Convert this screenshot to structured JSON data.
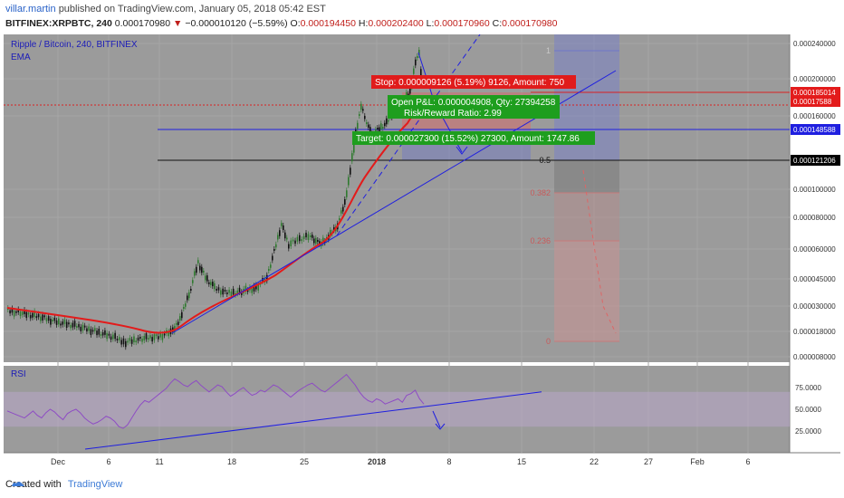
{
  "header": {
    "user": "villar.martin",
    "published": "published on TradingView.com, January 05, 2018 05:42 EST",
    "symbol": "BITFINEX:XRPBTC, 240",
    "last": "0.000170980",
    "change": "−0.000010120 (−5.59%)",
    "o_label": "O:",
    "o": "0.000194450",
    "h_label": "H:",
    "h": "0.000202400",
    "l_label": "L:",
    "l": "0.000170960",
    "c_label": "C:",
    "c": "0.000170980"
  },
  "footer": {
    "created_with": "Created with",
    "brand": "TradingView"
  },
  "colors": {
    "bg": "#9b9b9b",
    "grid": "#a6a6a6",
    "ema": "#e31b1b",
    "trend": "#1f1fe0",
    "up": "#2f7a2f",
    "down": "#111111",
    "rsi": "#8e4cc4",
    "rsi_band": "#b8a6c9",
    "stop_box": "#e01b1b",
    "target_box": "#1e9e1e",
    "fib_blue": "#6f78c8",
    "fib_red": "#c97a7a"
  },
  "chart_data": {
    "type": "candlestick",
    "title": "Ripple / Bitcoin, 240, BITFINEX",
    "indicator": "EMA",
    "x_labels": [
      "Dec",
      "6",
      "11",
      "18",
      "25",
      "2018",
      "8",
      "15",
      "22",
      "27",
      "Feb",
      "6"
    ],
    "y_ticks": [
      "0.000240000",
      "0.000200000",
      "0.000160000",
      "0.000100000",
      "0.000080000",
      "0.000060000",
      "0.000045000",
      "0.000030000",
      "0.000018000",
      "0.000008000"
    ],
    "price_badges": [
      {
        "text": "0.000185014",
        "color": "#e31b1b"
      },
      {
        "text": "0.00017588",
        "color": "#e31b1b"
      },
      {
        "text": "0.000148588",
        "color": "#1f1fe0"
      },
      {
        "text": "0.000121206",
        "color": "#000000"
      }
    ],
    "fib_levels": [
      "1",
      "0.5",
      "0.382",
      "0.236",
      "0"
    ],
    "position": {
      "stop": "Stop: 0.000009126 (5.19%) 9126, Amount: 750",
      "pnl": "Open P&L: 0.000004908, Qty: 27394258",
      "rr": "Risk/Reward Ratio: 2.99",
      "target": "Target: 0.000027300 (15.52%) 27300, Amount: 1747.86"
    },
    "rsi": {
      "label": "RSI",
      "y_ticks": [
        "75.0000",
        "50.0000",
        "25.0000"
      ],
      "band": [
        30,
        70
      ],
      "values": [
        48,
        46,
        44,
        42,
        40,
        44,
        48,
        43,
        40,
        46,
        50,
        47,
        42,
        38,
        45,
        48,
        50,
        46,
        40,
        36,
        33,
        35,
        38,
        42,
        40,
        36,
        30,
        28,
        32,
        40,
        48,
        55,
        60,
        58,
        62,
        66,
        70,
        74,
        80,
        85,
        82,
        78,
        76,
        80,
        83,
        78,
        74,
        70,
        74,
        78,
        76,
        70,
        65,
        68,
        72,
        75,
        70,
        66,
        68,
        72,
        70,
        74,
        78,
        76,
        72,
        68,
        64,
        68,
        72,
        75,
        78,
        80,
        76,
        72,
        70,
        74,
        78,
        82,
        86,
        90,
        84,
        78,
        70,
        64,
        60,
        58,
        62,
        60,
        56,
        58,
        60,
        62,
        58,
        66,
        68,
        72,
        62,
        56
      ]
    },
    "ohlc": []
  }
}
